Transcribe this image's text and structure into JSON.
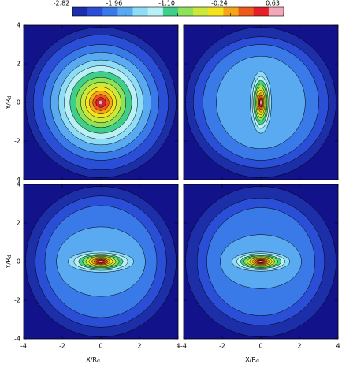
{
  "chart_data": {
    "type": "contour",
    "colorbar_lim": [
      -2.82,
      0.63
    ],
    "colorbar_ticks": [
      -2.82,
      -1.96,
      {
        "value": -1.1,
        "label": "-1.10"
      },
      -0.24,
      0.63
    ],
    "colormap": [
      "#1c2fa8",
      "#2a4fd6",
      "#3a7ae8",
      "#5aaaf2",
      "#8fdcf6",
      "#b8f0f6",
      "#3fcf8a",
      "#8ee25a",
      "#cce83a",
      "#f5e21e",
      "#f5a51a",
      "#ef5a1a",
      "#e61e28",
      "#f2a8b8"
    ],
    "background": "#12128a",
    "x_label": "X/R",
    "x_label_sub": "d",
    "y_label": "Y/R",
    "y_label_sub": "d",
    "xlim": [
      -4,
      4
    ],
    "ylim": [
      -4,
      4
    ],
    "xticks": [
      -4,
      -2,
      0,
      2,
      4
    ],
    "yticks": [
      -4,
      -2,
      0,
      2,
      4
    ],
    "panels": [
      {
        "rx": [
          3.9,
          3.5,
          3.0,
          2.6,
          2.2,
          1.9,
          1.6,
          1.3,
          1.05,
          0.8,
          0.6,
          0.42,
          0.26,
          0.12
        ],
        "ry": [
          3.9,
          3.5,
          3.0,
          2.6,
          2.2,
          1.9,
          1.6,
          1.3,
          1.05,
          0.8,
          0.6,
          0.42,
          0.26,
          0.12
        ]
      },
      {
        "rx": [
          3.9,
          3.5,
          3.0,
          2.3,
          0.55,
          0.45,
          0.38,
          0.32,
          0.26,
          0.21,
          0.16,
          0.12,
          0.08,
          0.05
        ],
        "ry": [
          3.9,
          3.4,
          3.0,
          2.4,
          1.6,
          1.35,
          1.15,
          0.95,
          0.8,
          0.65,
          0.5,
          0.37,
          0.25,
          0.14
        ]
      },
      {
        "rx": [
          3.9,
          3.4,
          2.9,
          2.3,
          1.7,
          1.4,
          1.15,
          0.95,
          0.78,
          0.62,
          0.48,
          0.36,
          0.24,
          0.13
        ],
        "ry": [
          3.9,
          3.4,
          2.9,
          1.8,
          0.55,
          0.45,
          0.38,
          0.32,
          0.27,
          0.22,
          0.17,
          0.13,
          0.09,
          0.05
        ]
      },
      {
        "rx": [
          3.9,
          3.3,
          2.8,
          2.1,
          1.5,
          1.25,
          1.05,
          0.88,
          0.72,
          0.58,
          0.45,
          0.34,
          0.23,
          0.12
        ],
        "ry": [
          3.9,
          3.3,
          2.8,
          1.4,
          0.5,
          0.42,
          0.35,
          0.3,
          0.25,
          0.2,
          0.16,
          0.12,
          0.08,
          0.05
        ]
      }
    ]
  }
}
